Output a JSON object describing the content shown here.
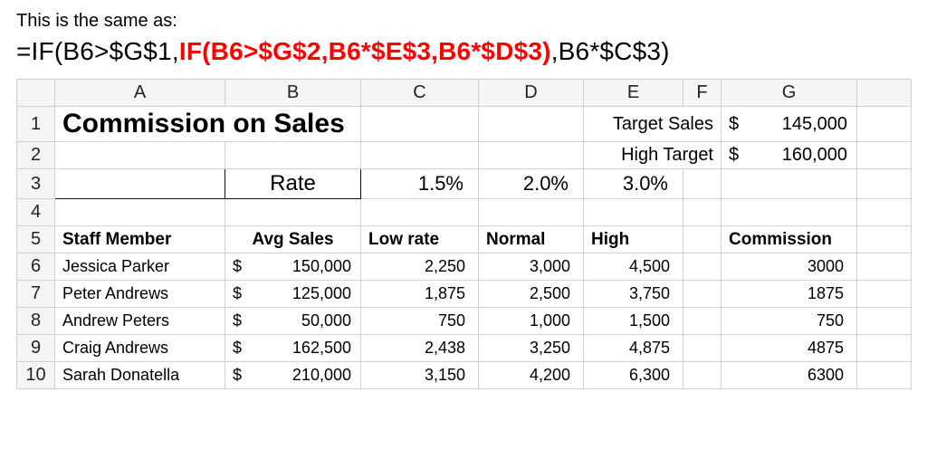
{
  "intro_text": "This is the same as:",
  "formula": {
    "pre": "=IF(B6>$G$1,",
    "mid": "IF(B6>$G$2,B6*$E$3,B6*$D$3)",
    "post": ",B6*$C$3)",
    "mid_color": "#ff0000"
  },
  "columns": [
    "A",
    "B",
    "C",
    "D",
    "E",
    "F",
    "G"
  ],
  "row_numbers": [
    "1",
    "2",
    "3",
    "4",
    "5",
    "6",
    "7",
    "8",
    "9",
    "10"
  ],
  "title": "Commission on Sales",
  "targets": {
    "target_sales_label": "Target Sales",
    "target_sales_value": "145,000",
    "high_target_label": "High Target",
    "high_target_value": "160,000"
  },
  "rate_label": "Rate",
  "rates": {
    "low": "1.5%",
    "normal": "2.0%",
    "high": "3.0%"
  },
  "headers": {
    "staff": "Staff Member",
    "avg_sales": "Avg Sales",
    "low": "Low rate",
    "normal": "Normal",
    "high": "High",
    "commission": "Commission"
  },
  "rows": [
    {
      "name": "Jessica Parker",
      "avg": "150,000",
      "low": "2,250",
      "normal": "3,000",
      "high": "4,500",
      "comm": "3000"
    },
    {
      "name": "Peter Andrews",
      "avg": "125,000",
      "low": "1,875",
      "normal": "2,500",
      "high": "3,750",
      "comm": "1875"
    },
    {
      "name": "Andrew Peters",
      "avg": "50,000",
      "low": "750",
      "normal": "1,000",
      "high": "1,500",
      "comm": "750"
    },
    {
      "name": "Craig Andrews",
      "avg": "162,500",
      "low": "2,438",
      "normal": "3,250",
      "high": "4,875",
      "comm": "4875"
    },
    {
      "name": "Sarah Donatella",
      "avg": "210,000",
      "low": "3,150",
      "normal": "4,200",
      "high": "6,300",
      "comm": "6300"
    }
  ],
  "dollar_sign": "$",
  "styling": {
    "grid_color": "#d0d0d0",
    "header_bg": "#f5f5f5",
    "title_fontsize": 30,
    "rate_fontsize": 24,
    "body_fontsize": 18
  }
}
